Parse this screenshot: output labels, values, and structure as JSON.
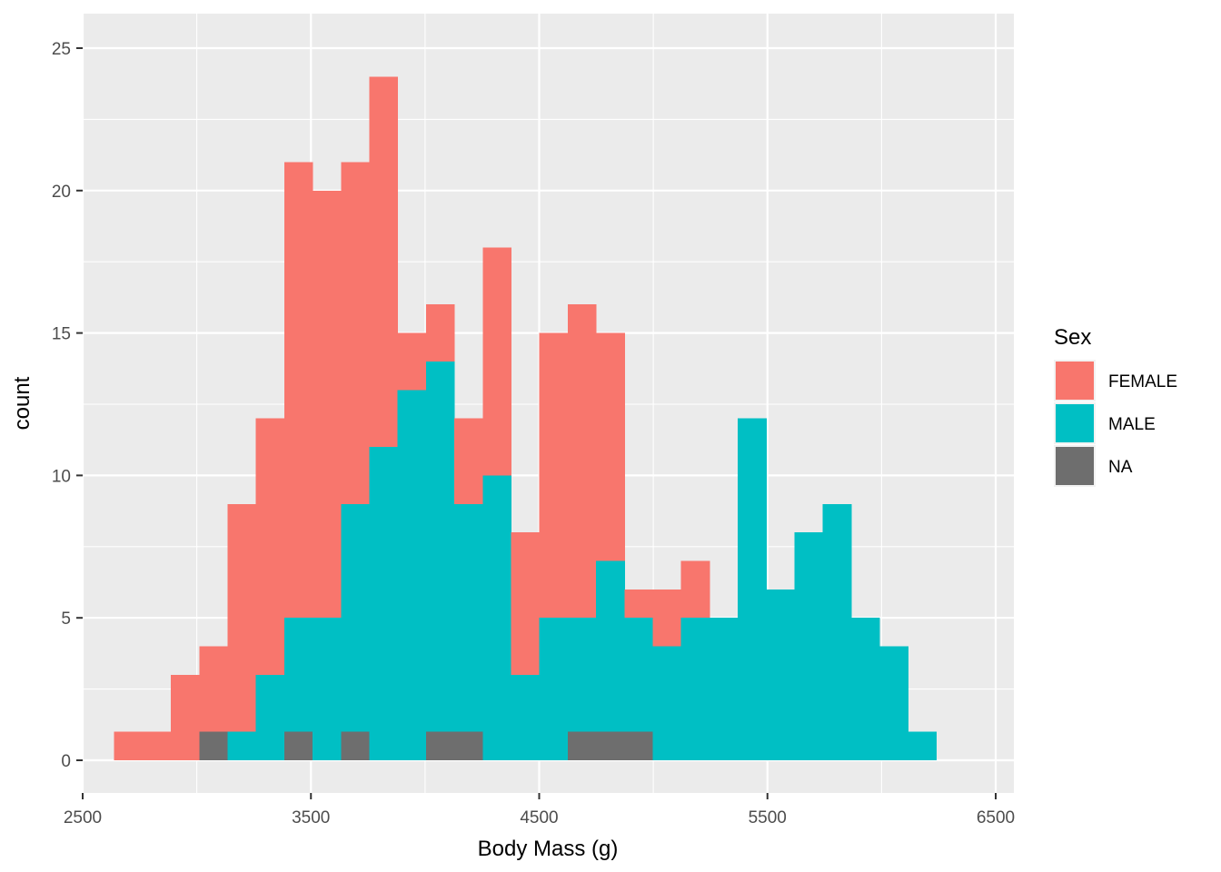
{
  "chart_data": {
    "type": "bar",
    "subtype": "stacked-histogram",
    "xlabel": "Body Mass (g)",
    "ylabel": "count",
    "xlim": [
      2500,
      6500
    ],
    "ylim": [
      0,
      25
    ],
    "x_ticks": [
      2500,
      3500,
      4500,
      5500,
      6500
    ],
    "y_ticks": [
      0,
      5,
      10,
      15,
      20,
      25
    ],
    "grid": true,
    "legend": {
      "title": "Sex",
      "placement": "right"
    },
    "bin_width": 124.19,
    "bin_centers": [
      2700,
      2824.19,
      2948.39,
      3072.58,
      3196.77,
      3320.97,
      3445.16,
      3569.35,
      3693.55,
      3817.74,
      3941.94,
      4066.13,
      4190.32,
      4314.52,
      4438.71,
      4562.9,
      4687.1,
      4811.29,
      4935.48,
      5059.68,
      5183.87,
      5308.06,
      5432.26,
      5556.45,
      5680.65,
      5804.84,
      5929.03,
      6053.23,
      6177.42,
      6301.61
    ],
    "series": [
      {
        "name": "FEMALE",
        "color": "#F8766D",
        "values": [
          1,
          1,
          3,
          3,
          8,
          9,
          16,
          15,
          12,
          13,
          2,
          2,
          3,
          8,
          5,
          10,
          11,
          8,
          1,
          2,
          2,
          0,
          0,
          0,
          0,
          0,
          0,
          0,
          0,
          0
        ]
      },
      {
        "name": "MALE",
        "color": "#00BFC4",
        "values": [
          0,
          0,
          0,
          0,
          1,
          3,
          4,
          5,
          8,
          11,
          13,
          13,
          8,
          10,
          3,
          5,
          4,
          6,
          4,
          4,
          5,
          5,
          12,
          6,
          8,
          9,
          5,
          4,
          1,
          0
        ]
      },
      {
        "name": "NA",
        "color": "#6E6E6E",
        "values": [
          0,
          0,
          0,
          1,
          0,
          0,
          1,
          0,
          1,
          0,
          0,
          1,
          1,
          0,
          0,
          0,
          1,
          1,
          1,
          0,
          0,
          0,
          0,
          0,
          0,
          0,
          0,
          0,
          0,
          0
        ]
      }
    ]
  }
}
